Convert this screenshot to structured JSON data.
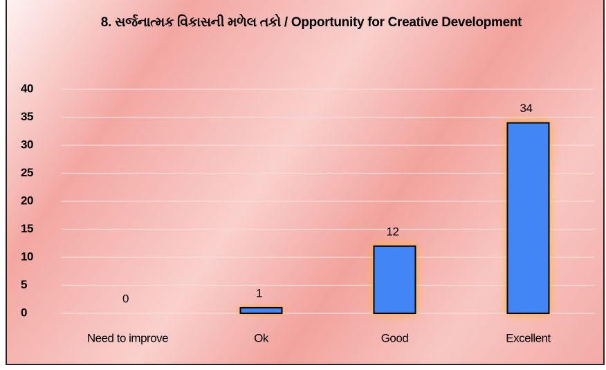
{
  "chart_data": {
    "type": "bar",
    "title": "8. સર્જનાત્મક વિકાસની મળેલ તકો /  Opportunity for Creative Development",
    "categories": [
      "Need to improve",
      "Ok",
      "Good",
      "Excellent"
    ],
    "values": [
      0,
      1,
      12,
      34
    ],
    "color": "#4285f4",
    "ylim": [
      0,
      40
    ],
    "yticks": [
      0,
      5,
      10,
      15,
      20,
      25,
      30,
      35,
      40
    ],
    "grid": true
  }
}
